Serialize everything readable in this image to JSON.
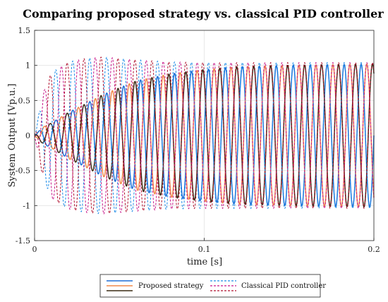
{
  "chart_data": {
    "type": "line",
    "title": "Comparing proposed strategy vs. classical PID controller",
    "xlabel": "time [s]",
    "ylabel": "System Output [Vp.u.]",
    "xlim": [
      0,
      0.2
    ],
    "ylim": [
      -1.5,
      1.5
    ],
    "xticks": [
      "0",
      "0.1",
      "0.2"
    ],
    "yticks": [
      "1.5",
      "1",
      "0.5",
      "0",
      "-0.5",
      "-1",
      "-1.5"
    ],
    "grid": true,
    "legend_position": "bottom-center-outside",
    "legend_groups": [
      "Proposed strategy",
      "Classical PID controller"
    ],
    "fundamental_hz": 100,
    "series": [
      {
        "group": "Proposed strategy",
        "style": "solid",
        "color": "#1f6fd6",
        "phase_deg": 0,
        "envelope": {
          "t": [
            0,
            0.005,
            0.01,
            0.02,
            0.03,
            0.04,
            0.05,
            0.06,
            0.08,
            0.1,
            0.12,
            0.15,
            0.2
          ],
          "amp": [
            0,
            0.12,
            0.18,
            0.33,
            0.45,
            0.58,
            0.68,
            0.78,
            0.88,
            0.94,
            0.98,
            1.0,
            1.02
          ]
        }
      },
      {
        "group": "Proposed strategy",
        "style": "solid",
        "color": "#f08a4b",
        "phase_deg": 120,
        "envelope": {
          "t": [
            0,
            0.005,
            0.01,
            0.02,
            0.03,
            0.04,
            0.05,
            0.06,
            0.08,
            0.1,
            0.12,
            0.15,
            0.2
          ],
          "amp": [
            0,
            0.12,
            0.18,
            0.33,
            0.45,
            0.58,
            0.68,
            0.78,
            0.88,
            0.94,
            0.98,
            1.0,
            1.02
          ]
        }
      },
      {
        "group": "Proposed strategy",
        "style": "solid",
        "color": "#3a2a14",
        "phase_deg": 240,
        "envelope": {
          "t": [
            0,
            0.005,
            0.01,
            0.02,
            0.03,
            0.04,
            0.05,
            0.06,
            0.08,
            0.1,
            0.12,
            0.15,
            0.2
          ],
          "amp": [
            0,
            0.12,
            0.18,
            0.33,
            0.45,
            0.58,
            0.68,
            0.78,
            0.88,
            0.94,
            0.98,
            1.0,
            1.02
          ]
        }
      },
      {
        "group": "Classical PID controller",
        "style": "dashed",
        "color": "#1c8ce8",
        "phase_deg": 0,
        "envelope": {
          "t": [
            0,
            0.005,
            0.01,
            0.02,
            0.03,
            0.04,
            0.05,
            0.06,
            0.08,
            0.1,
            0.12,
            0.15,
            0.2
          ],
          "amp": [
            0,
            0.6,
            0.9,
            1.05,
            1.1,
            1.12,
            1.1,
            1.08,
            1.05,
            1.04,
            1.04,
            1.04,
            1.04
          ]
        }
      },
      {
        "group": "Classical PID controller",
        "style": "dashed",
        "color": "#c8168a",
        "phase_deg": 120,
        "envelope": {
          "t": [
            0,
            0.005,
            0.01,
            0.02,
            0.03,
            0.04,
            0.05,
            0.06,
            0.08,
            0.1,
            0.12,
            0.15,
            0.2
          ],
          "amp": [
            0,
            0.6,
            0.9,
            1.05,
            1.1,
            1.12,
            1.1,
            1.08,
            1.05,
            1.04,
            1.04,
            1.04,
            1.04
          ]
        }
      },
      {
        "group": "Classical PID controller",
        "style": "dashed",
        "color": "#b0102e",
        "phase_deg": 240,
        "envelope": {
          "t": [
            0,
            0.005,
            0.01,
            0.02,
            0.03,
            0.04,
            0.05,
            0.06,
            0.08,
            0.1,
            0.12,
            0.15,
            0.2
          ],
          "amp": [
            0,
            0.6,
            0.9,
            1.05,
            1.1,
            1.12,
            1.1,
            1.08,
            1.05,
            1.04,
            1.04,
            1.04,
            1.04
          ]
        }
      }
    ]
  }
}
